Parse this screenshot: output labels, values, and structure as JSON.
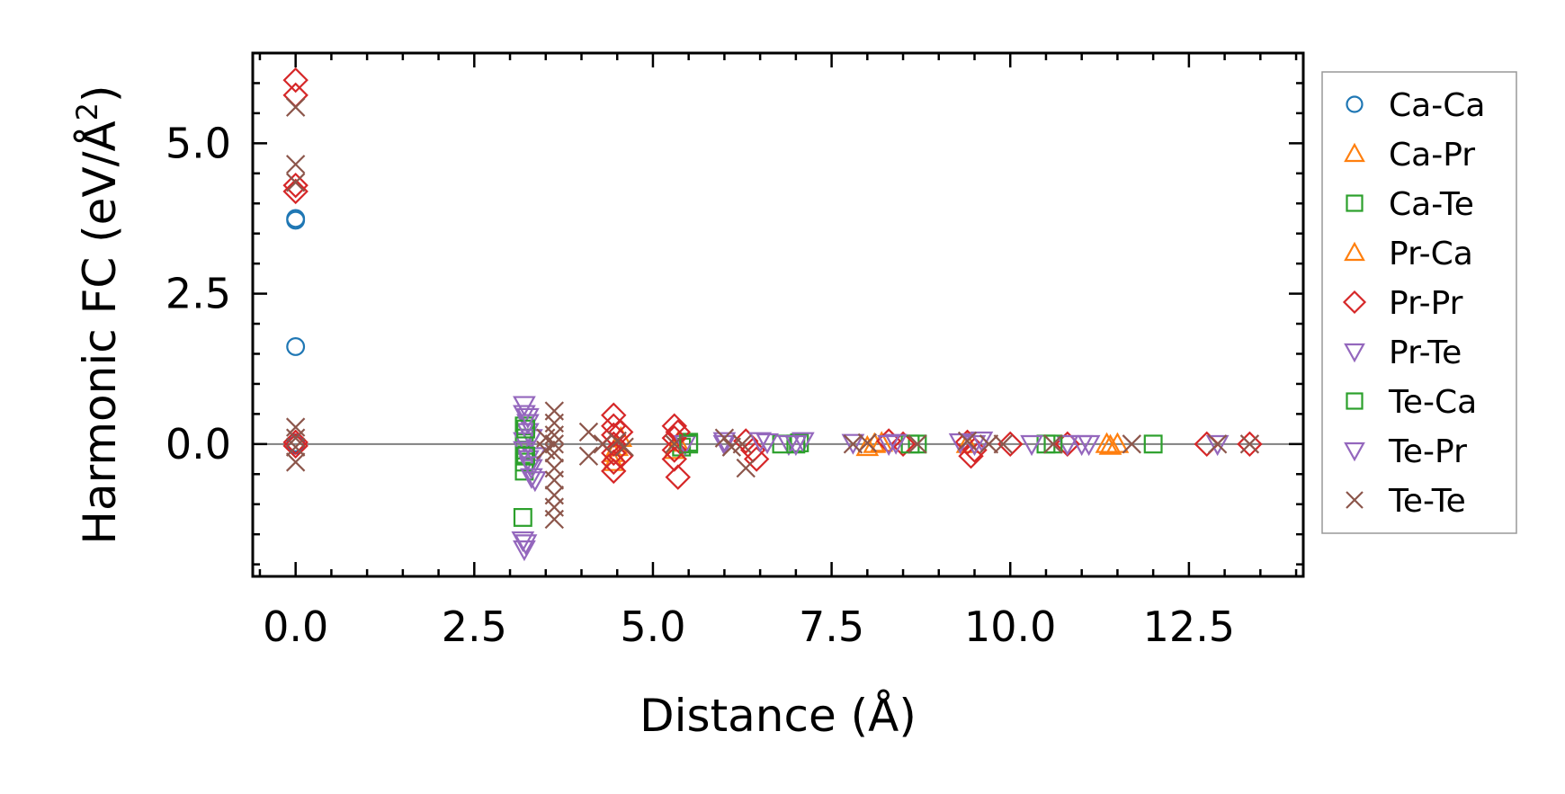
{
  "chart_data": {
    "type": "scatter",
    "xlabel": "Distance (Å)",
    "ylabel_main": "Harmonic FC (eV/Å",
    "ylabel_sup": "2",
    "ylabel_close": ")",
    "xlim": [
      -0.6,
      14.1
    ],
    "ylim": [
      -2.2,
      6.5
    ],
    "xticks": [
      0.0,
      2.5,
      5.0,
      7.5,
      10.0,
      12.5
    ],
    "xtick_labels": [
      "0.0",
      "2.5",
      "5.0",
      "7.5",
      "10.0",
      "12.5"
    ],
    "yticks": [
      0.0,
      2.5,
      5.0
    ],
    "ytick_labels": [
      "0.0",
      "2.5",
      "5.0"
    ],
    "reference_line_y": 0,
    "legend_position": "outside-right",
    "series": [
      {
        "name": "Ca-Ca",
        "marker": "circle",
        "color": "#1f77b4",
        "points": [
          [
            0,
            3.72
          ],
          [
            0,
            3.75
          ],
          [
            0,
            1.62
          ],
          [
            0,
            0.02
          ],
          [
            0,
            -0.02
          ]
        ]
      },
      {
        "name": "Ca-Pr",
        "marker": "triangle-up",
        "color": "#ff7f0e",
        "points": [
          [
            4.45,
            -0.3
          ],
          [
            4.5,
            -0.05
          ],
          [
            5.35,
            0.02
          ],
          [
            8.0,
            -0.05
          ],
          [
            8.1,
            0.0
          ],
          [
            9.4,
            0.0
          ],
          [
            11.4,
            -0.03
          ],
          [
            11.5,
            0.0
          ]
        ]
      },
      {
        "name": "Ca-Te",
        "marker": "square",
        "color": "#2ca02c",
        "points": [
          [
            3.18,
            -1.22
          ],
          [
            3.2,
            0.3
          ],
          [
            3.2,
            0.1
          ],
          [
            3.2,
            -0.1
          ],
          [
            3.2,
            -0.3
          ],
          [
            3.2,
            -0.45
          ],
          [
            5.4,
            -0.05
          ],
          [
            5.5,
            0.03
          ],
          [
            6.8,
            0.0
          ],
          [
            7.05,
            0.02
          ],
          [
            8.7,
            0.0
          ],
          [
            10.5,
            0.0
          ],
          [
            12.0,
            0.0
          ]
        ]
      },
      {
        "name": "Pr-Ca",
        "marker": "triangle-up",
        "color": "#ff7f0e",
        "points": [
          [
            4.45,
            -0.15
          ],
          [
            4.55,
            0.1
          ],
          [
            5.3,
            -0.1
          ],
          [
            8.2,
            0.02
          ],
          [
            11.35,
            0.0
          ]
        ]
      },
      {
        "name": "Pr-Pr",
        "marker": "diamond",
        "color": "#d62728",
        "points": [
          [
            0,
            6.05
          ],
          [
            0,
            5.8
          ],
          [
            0,
            4.3
          ],
          [
            0,
            4.2
          ],
          [
            0,
            0.03
          ],
          [
            0,
            -0.03
          ],
          [
            4.45,
            0.48
          ],
          [
            4.45,
            0.3
          ],
          [
            4.45,
            0.15
          ],
          [
            4.45,
            0.0
          ],
          [
            4.45,
            -0.15
          ],
          [
            4.45,
            -0.3
          ],
          [
            4.45,
            -0.45
          ],
          [
            4.55,
            0.2
          ],
          [
            4.55,
            -0.2
          ],
          [
            5.3,
            0.3
          ],
          [
            5.3,
            0.1
          ],
          [
            5.3,
            -0.1
          ],
          [
            5.3,
            -0.25
          ],
          [
            5.35,
            -0.55
          ],
          [
            5.35,
            0.2
          ],
          [
            6.3,
            0.05
          ],
          [
            6.4,
            -0.1
          ],
          [
            6.45,
            -0.25
          ],
          [
            8.3,
            0.05
          ],
          [
            8.5,
            0.0
          ],
          [
            9.4,
            0.03
          ],
          [
            9.45,
            -0.2
          ],
          [
            9.5,
            -0.1
          ],
          [
            10.0,
            0.0
          ],
          [
            10.8,
            0.0
          ],
          [
            12.75,
            0.0
          ],
          [
            13.35,
            0.0
          ]
        ]
      },
      {
        "name": "Pr-Te",
        "marker": "triangle-down",
        "color": "#9467bd",
        "points": [
          [
            3.2,
            0.65
          ],
          [
            3.2,
            0.5
          ],
          [
            3.25,
            0.35
          ],
          [
            3.25,
            0.2
          ],
          [
            3.2,
            0.05
          ],
          [
            3.2,
            -0.1
          ],
          [
            3.25,
            -0.25
          ],
          [
            3.3,
            -0.4
          ],
          [
            3.3,
            -0.55
          ],
          [
            3.35,
            -0.6
          ],
          [
            3.18,
            -1.6
          ],
          [
            3.2,
            -1.75
          ],
          [
            3.3,
            0.1
          ],
          [
            3.35,
            -0.2
          ],
          [
            5.45,
            0.0
          ],
          [
            6.0,
            0.05
          ],
          [
            6.5,
            0.05
          ],
          [
            6.9,
            0.0
          ],
          [
            7.1,
            0.05
          ],
          [
            7.8,
            0.02
          ],
          [
            8.3,
            0.0
          ],
          [
            9.3,
            0.03
          ],
          [
            9.6,
            0.06
          ],
          [
            10.3,
            0.0
          ],
          [
            10.8,
            0.0
          ],
          [
            11.0,
            0.0
          ],
          [
            12.9,
            0.0
          ]
        ]
      },
      {
        "name": "Te-Ca",
        "marker": "square",
        "color": "#2ca02c",
        "points": [
          [
            3.22,
            0.25
          ],
          [
            3.22,
            -0.2
          ],
          [
            5.5,
            0.0
          ],
          [
            7.0,
            0.0
          ],
          [
            8.6,
            0.0
          ],
          [
            10.6,
            0.0
          ]
        ]
      },
      {
        "name": "Te-Pr",
        "marker": "triangle-down",
        "color": "#9467bd",
        "points": [
          [
            3.25,
            0.45
          ],
          [
            3.28,
            -0.35
          ],
          [
            3.22,
            -1.65
          ],
          [
            6.0,
            0.0
          ],
          [
            6.6,
            0.03
          ],
          [
            7.0,
            0.0
          ],
          [
            8.4,
            0.02
          ],
          [
            9.5,
            0.0
          ],
          [
            11.1,
            0.0
          ]
        ]
      },
      {
        "name": "Te-Te",
        "marker": "x",
        "color": "#8c564b",
        "points": [
          [
            0,
            5.6
          ],
          [
            0,
            4.65
          ],
          [
            0,
            4.35
          ],
          [
            0,
            0.28
          ],
          [
            0,
            0.1
          ],
          [
            0,
            -0.05
          ],
          [
            0,
            -0.3
          ],
          [
            3.62,
            0.55
          ],
          [
            3.62,
            0.35
          ],
          [
            3.62,
            0.15
          ],
          [
            3.62,
            0.0
          ],
          [
            3.62,
            -0.15
          ],
          [
            3.62,
            -0.4
          ],
          [
            3.62,
            -0.6
          ],
          [
            3.62,
            -0.85
          ],
          [
            3.62,
            -1.05
          ],
          [
            3.62,
            -1.25
          ],
          [
            3.5,
            0.1
          ],
          [
            3.5,
            -0.1
          ],
          [
            4.1,
            0.2
          ],
          [
            4.1,
            -0.2
          ],
          [
            4.3,
            0.0
          ],
          [
            4.5,
            0.05
          ],
          [
            4.6,
            -0.05
          ],
          [
            5.3,
            0.0
          ],
          [
            6.0,
            0.1
          ],
          [
            6.1,
            -0.05
          ],
          [
            6.25,
            0.0
          ],
          [
            6.3,
            -0.4
          ],
          [
            7.8,
            0.0
          ],
          [
            8.0,
            0.02
          ],
          [
            8.7,
            0.0
          ],
          [
            9.4,
            0.05
          ],
          [
            9.7,
            0.0
          ],
          [
            9.9,
            0.0
          ],
          [
            10.6,
            0.0
          ],
          [
            11.7,
            0.0
          ],
          [
            12.9,
            0.0
          ],
          [
            13.35,
            0.0
          ]
        ]
      }
    ]
  }
}
